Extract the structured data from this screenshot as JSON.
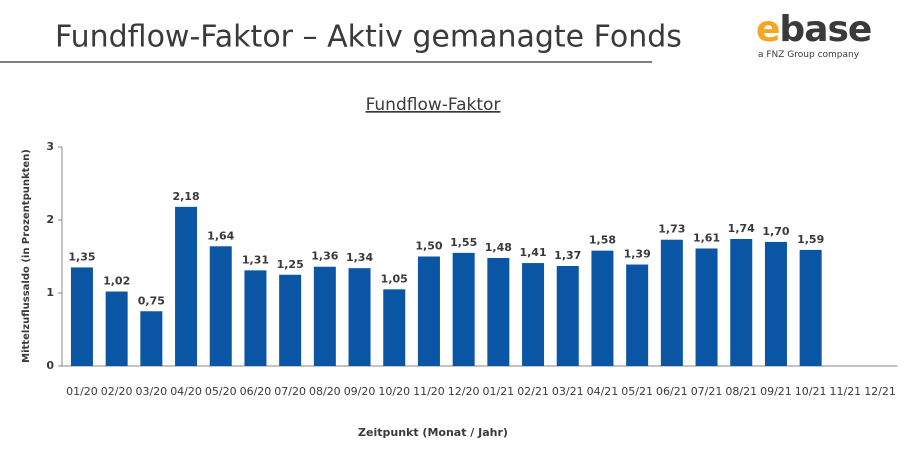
{
  "header": {
    "title": "Fundflow-Faktor – Aktiv gemanagte Fonds",
    "logo": "ebase",
    "tagline": "a FNZ Group company"
  },
  "chart_data": {
    "type": "bar",
    "title": "Fundflow-Faktor",
    "x_label": "Zeitpunkt (Monat / Jahr)",
    "y_label": "Mittelzuflussaldo (in Prozentpunkten)",
    "categories": [
      "01/20",
      "02/20",
      "03/20",
      "04/20",
      "05/20",
      "06/20",
      "07/20",
      "08/20",
      "09/20",
      "10/20",
      "11/20",
      "12/20",
      "01/21",
      "02/21",
      "03/21",
      "04/21",
      "05/21",
      "06/21",
      "07/21",
      "08/21",
      "09/21",
      "10/21",
      "11/21",
      "12/21"
    ],
    "values": [
      1.35,
      1.02,
      0.75,
      2.18,
      1.64,
      1.31,
      1.25,
      1.36,
      1.34,
      1.05,
      1.5,
      1.55,
      1.48,
      1.41,
      1.37,
      1.58,
      1.39,
      1.73,
      1.61,
      1.74,
      1.7,
      1.59,
      null,
      null
    ],
    "value_labels": [
      "1,35",
      "1,02",
      "0,75",
      "2,18",
      "1,64",
      "1,31",
      "1,25",
      "1,36",
      "1,34",
      "1,05",
      "1,50",
      "1,55",
      "1,48",
      "1,41",
      "1,37",
      "1,58",
      "1,39",
      "1,73",
      "1,61",
      "1,74",
      "1,70",
      "1,59",
      null,
      null
    ],
    "color": "#0a56a4",
    "ylim": [
      0,
      3
    ],
    "yticks": [
      0,
      1,
      2,
      3
    ]
  }
}
